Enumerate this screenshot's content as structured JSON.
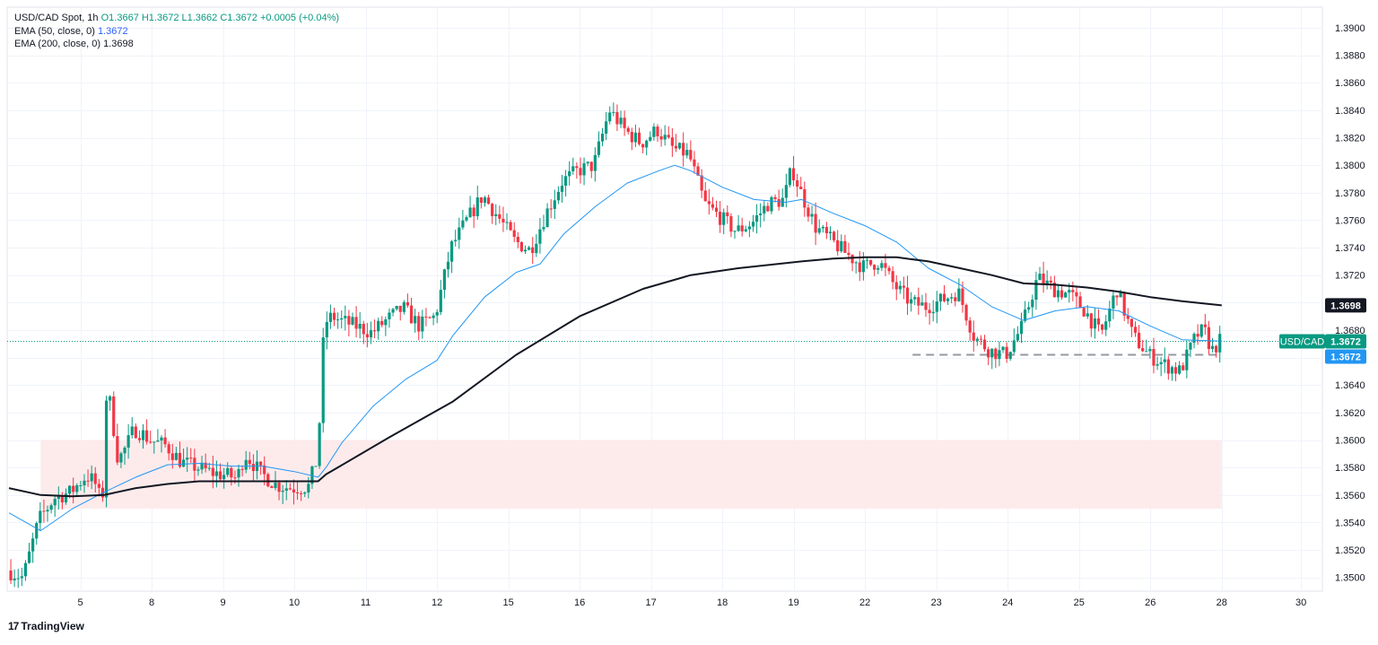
{
  "legend": {
    "symbol": "USD/CAD Spot, 1h",
    "ohlc": "O1.3667  H1.3672  L1.3662  C1.3672  +0.0005 (+0.04%)",
    "ema50_label": "EMA (50, close, 0)",
    "ema50_value": "1.3672",
    "ema200_label": "EMA (200, close, 0)",
    "ema200_value": "1.3698"
  },
  "badges": {
    "ema200": "1.3698",
    "symbol": "USD/CAD",
    "price": "1.3672",
    "ema50": "1.3672"
  },
  "branding": {
    "logo_mark": "17",
    "logo_text": "TradingView"
  },
  "colors": {
    "up": "#089981",
    "down": "#f23645",
    "ema50": "#2196f3",
    "ema200": "#131722",
    "zone": "#fde8e9",
    "grid": "#f0f3fa",
    "price_line": "#089981",
    "support": "#9598a1"
  },
  "chart_data": {
    "type": "candlestick",
    "title": "USD/CAD Spot, 1h",
    "ylim": [
      1.349,
      1.3915
    ],
    "y_ticks": [
      "1.3500",
      "1.3520",
      "1.3540",
      "1.3560",
      "1.3580",
      "1.3600",
      "1.3620",
      "1.3640",
      "1.3660",
      "1.3680",
      "1.3700",
      "1.3720",
      "1.3740",
      "1.3760",
      "1.3780",
      "1.3800",
      "1.3820",
      "1.3840",
      "1.3860",
      "1.3880",
      "1.3900"
    ],
    "x_ticks": [
      "5",
      "8",
      "9",
      "10",
      "11",
      "12",
      "15",
      "16",
      "17",
      "18",
      "19",
      "22",
      "23",
      "24",
      "25",
      "26",
      "28",
      "30"
    ],
    "x_tick_index": [
      4.5,
      9,
      13.5,
      18,
      22.5,
      27,
      31.5,
      36,
      40.5,
      45,
      49.5,
      54,
      58.5,
      63,
      67.5,
      72,
      76.5,
      81.5
    ],
    "last_price": 1.3672,
    "support_level": 1.3662,
    "support_range_index": [
      57,
      76.5
    ],
    "zone": {
      "from": 1.355,
      "to": 1.36,
      "range_index": [
        2,
        76.5
      ]
    },
    "ohlc_keypoints": [
      [
        0,
        1.3505
      ],
      [
        1,
        1.35
      ],
      [
        2,
        1.3542
      ],
      [
        3,
        1.3558
      ],
      [
        4,
        1.3562
      ],
      [
        5,
        1.3574
      ],
      [
        5.5,
        1.357
      ],
      [
        6,
        1.3553
      ],
      [
        6.3,
        1.3643
      ],
      [
        7,
        1.3585
      ],
      [
        7.5,
        1.3595
      ],
      [
        8,
        1.3608
      ],
      [
        8.5,
        1.3605
      ],
      [
        9,
        1.36
      ],
      [
        10,
        1.3596
      ],
      [
        11,
        1.3584
      ],
      [
        12,
        1.358
      ],
      [
        13,
        1.3576
      ],
      [
        14,
        1.3574
      ],
      [
        14.5,
        1.3572
      ],
      [
        15,
        1.359
      ],
      [
        16,
        1.3576
      ],
      [
        17,
        1.3567
      ],
      [
        18,
        1.3565
      ],
      [
        19,
        1.3566
      ],
      [
        19.6,
        1.3588
      ],
      [
        20,
        1.3685
      ],
      [
        20.5,
        1.369
      ],
      [
        21,
        1.3687
      ],
      [
        22,
        1.3683
      ],
      [
        23,
        1.3678
      ],
      [
        24,
        1.3688
      ],
      [
        25,
        1.3696
      ],
      [
        26,
        1.3683
      ],
      [
        27,
        1.369
      ],
      [
        28,
        1.374
      ],
      [
        29,
        1.376
      ],
      [
        30,
        1.3778
      ],
      [
        31,
        1.3762
      ],
      [
        32,
        1.3745
      ],
      [
        33,
        1.3738
      ],
      [
        34,
        1.3765
      ],
      [
        35,
        1.3788
      ],
      [
        36,
        1.3796
      ],
      [
        37,
        1.38
      ],
      [
        38,
        1.384
      ],
      [
        39,
        1.3825
      ],
      [
        40,
        1.3816
      ],
      [
        41,
        1.3826
      ],
      [
        42,
        1.3812
      ],
      [
        43,
        1.3808
      ],
      [
        44,
        1.3772
      ],
      [
        45,
        1.3762
      ],
      [
        46,
        1.3752
      ],
      [
        47,
        1.3758
      ],
      [
        48,
        1.3772
      ],
      [
        49,
        1.3775
      ],
      [
        49.5,
        1.3798
      ],
      [
        50,
        1.3782
      ],
      [
        51,
        1.3755
      ],
      [
        52,
        1.3745
      ],
      [
        53,
        1.3735
      ],
      [
        54,
        1.3726
      ],
      [
        55,
        1.373
      ],
      [
        56,
        1.3712
      ],
      [
        57,
        1.37
      ],
      [
        58,
        1.3697
      ],
      [
        59,
        1.3702
      ],
      [
        60,
        1.3708
      ],
      [
        61,
        1.3675
      ],
      [
        62,
        1.3665
      ],
      [
        63,
        1.3662
      ],
      [
        64,
        1.3682
      ],
      [
        65,
        1.3718
      ],
      [
        66,
        1.371
      ],
      [
        67,
        1.3706
      ],
      [
        68,
        1.3694
      ],
      [
        69,
        1.3676
      ],
      [
        70,
        1.371
      ],
      [
        71,
        1.3676
      ],
      [
        72,
        1.3662
      ],
      [
        73,
        1.3655
      ],
      [
        74,
        1.365
      ],
      [
        75,
        1.3676
      ],
      [
        75.5,
        1.368
      ],
      [
        76,
        1.3665
      ],
      [
        76.5,
        1.3672
      ]
    ],
    "ema50": [
      [
        0,
        1.3547
      ],
      [
        2,
        1.3534
      ],
      [
        4,
        1.355
      ],
      [
        6,
        1.3562
      ],
      [
        8,
        1.3573
      ],
      [
        10,
        1.3582
      ],
      [
        12,
        1.3583
      ],
      [
        14,
        1.3581
      ],
      [
        16,
        1.3581
      ],
      [
        18,
        1.3577
      ],
      [
        19.5,
        1.3573
      ],
      [
        20,
        1.358
      ],
      [
        21,
        1.3598
      ],
      [
        23,
        1.3625
      ],
      [
        25,
        1.3644
      ],
      [
        27,
        1.3658
      ],
      [
        28,
        1.3676
      ],
      [
        30,
        1.3704
      ],
      [
        32,
        1.3722
      ],
      [
        33.5,
        1.3728
      ],
      [
        35,
        1.375
      ],
      [
        37,
        1.377
      ],
      [
        39,
        1.3787
      ],
      [
        41,
        1.3796
      ],
      [
        42,
        1.38
      ],
      [
        43,
        1.3796
      ],
      [
        45,
        1.3784
      ],
      [
        47,
        1.3775
      ],
      [
        49,
        1.3773
      ],
      [
        50,
        1.3775
      ],
      [
        52,
        1.3765
      ],
      [
        54,
        1.3756
      ],
      [
        56,
        1.3744
      ],
      [
        58,
        1.3725
      ],
      [
        60,
        1.3713
      ],
      [
        62,
        1.3697
      ],
      [
        64,
        1.3687
      ],
      [
        66,
        1.3694
      ],
      [
        68,
        1.3697
      ],
      [
        70,
        1.3694
      ],
      [
        72,
        1.3683
      ],
      [
        74,
        1.3673
      ],
      [
        76.5,
        1.3672
      ]
    ],
    "ema200": [
      [
        0,
        1.3565
      ],
      [
        2,
        1.356
      ],
      [
        4,
        1.3559
      ],
      [
        6,
        1.356
      ],
      [
        8,
        1.3565
      ],
      [
        10,
        1.3568
      ],
      [
        12,
        1.357
      ],
      [
        14,
        1.357
      ],
      [
        16,
        1.357
      ],
      [
        18,
        1.357
      ],
      [
        19.5,
        1.357
      ],
      [
        20,
        1.3575
      ],
      [
        24,
        1.3602
      ],
      [
        28,
        1.3628
      ],
      [
        32,
        1.3662
      ],
      [
        36,
        1.369
      ],
      [
        40,
        1.371
      ],
      [
        43,
        1.372
      ],
      [
        46,
        1.3725
      ],
      [
        50,
        1.373
      ],
      [
        52,
        1.3732
      ],
      [
        54,
        1.3733
      ],
      [
        56,
        1.3733
      ],
      [
        58,
        1.373
      ],
      [
        60,
        1.3725
      ],
      [
        62,
        1.372
      ],
      [
        64,
        1.3714
      ],
      [
        66,
        1.3713
      ],
      [
        68,
        1.3711
      ],
      [
        70,
        1.3708
      ],
      [
        72,
        1.3704
      ],
      [
        74,
        1.3701
      ],
      [
        76.5,
        1.3698
      ]
    ]
  }
}
